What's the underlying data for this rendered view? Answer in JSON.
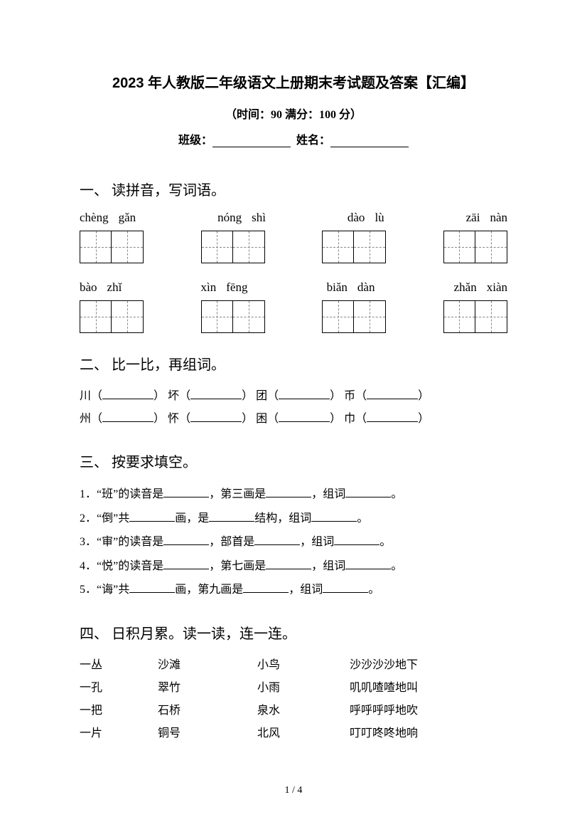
{
  "header": {
    "title": "2023 年人教版二年级语文上册期末考试题及答案【汇编】",
    "subtitle": "（时间：90   满分：100 分）",
    "class_label": "班级：",
    "name_label": "姓名："
  },
  "sec1": {
    "header": "一、 读拼音，写词语。",
    "row1": [
      [
        "chèng",
        "gǎn"
      ],
      [
        "nóng",
        "shì"
      ],
      [
        "dào",
        "lù"
      ],
      [
        "zāi",
        "nàn"
      ]
    ],
    "row2": [
      [
        "bào",
        "zhǐ"
      ],
      [
        "xìn",
        "fēng"
      ],
      [
        "biǎn",
        "dàn"
      ],
      [
        "zhǎn",
        "xiàn"
      ]
    ]
  },
  "sec2": {
    "header": "二、 比一比，再组词。",
    "line1": {
      "a": "川",
      "b": "坏",
      "c": "团",
      "d": "币"
    },
    "line2": {
      "a": "州",
      "b": "怀",
      "c": "困",
      "d": "巾"
    }
  },
  "sec3": {
    "header": "三、 按要求填空。",
    "q1": {
      "n": "1．",
      "p1": "“班”的读音是",
      "p2": "，第三画是",
      "p3": "，组词",
      "p4": "。"
    },
    "q2": {
      "n": "2．",
      "p1": "“倒”共",
      "p2": "画，是",
      "p3": "结构，组词",
      "p4": "。"
    },
    "q3": {
      "n": "3．",
      "p1": "“审”的读音是",
      "p2": "，部首是",
      "p3": "，组词",
      "p4": "。"
    },
    "q4": {
      "n": "4．",
      "p1": "“悦”的读音是",
      "p2": "，第七画是",
      "p3": "，组词",
      "p4": "。"
    },
    "q5": {
      "n": "5．",
      "p1": "“诲”共",
      "p2": "画，第九画是",
      "p3": "，组词",
      "p4": "。"
    }
  },
  "sec4": {
    "header": "四、 日积月累。读一读，连一连。",
    "rows": [
      {
        "c1": "一丛",
        "c2": "沙滩",
        "c3": "小鸟",
        "c4": "沙沙沙沙地下"
      },
      {
        "c1": "一孔",
        "c2": "翠竹",
        "c3": "小雨",
        "c4": "叽叽喳喳地叫"
      },
      {
        "c1": "一把",
        "c2": "石桥",
        "c3": "泉水",
        "c4": "呼呼呼呼地吹"
      },
      {
        "c1": "一片",
        "c2": "铜号",
        "c3": "北风",
        "c4": "叮叮咚咚地响"
      }
    ]
  },
  "footer": "1 / 4"
}
